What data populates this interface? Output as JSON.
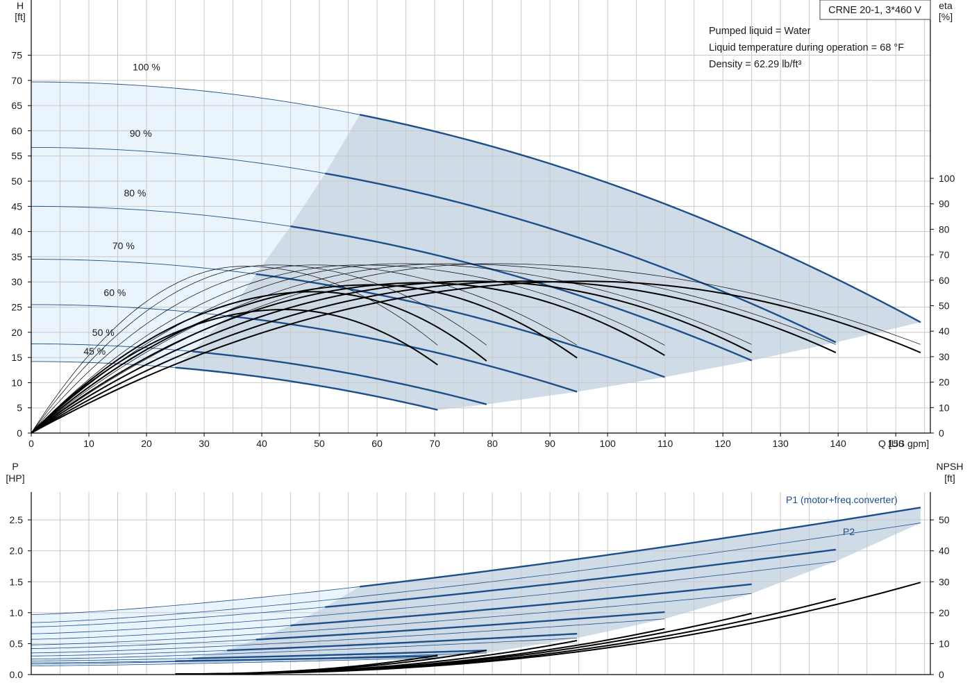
{
  "title": "CRNE 20-1, 3*460 V",
  "info_lines": [
    "Pumped liquid = Water",
    "Liquid temperature during operation = 68 °F",
    "Density = 62.29 lb/ft³"
  ],
  "colors": {
    "grid": "#c8c8c8",
    "blue_curve": "#1c4e8a",
    "black_curve": "#000000",
    "region_light": "#eaf4fd",
    "region_dark": "#cfdbe7"
  },
  "chart_data": [
    {
      "id": "head",
      "type": "line",
      "xlabel": "Q [US gpm]",
      "ylabel_left": [
        "H",
        "[ft]"
      ],
      "ylabel_right": [
        "eta",
        "[%]"
      ],
      "xlim": [
        0,
        156
      ],
      "ylim_left": [
        0,
        81
      ],
      "ylim_right": [
        0,
        100
      ],
      "x_ticks": [
        0,
        10,
        20,
        30,
        40,
        50,
        60,
        70,
        80,
        90,
        100,
        110,
        120,
        130,
        140,
        150
      ],
      "y_ticks_left": [
        0,
        5,
        10,
        15,
        20,
        25,
        30,
        35,
        40,
        45,
        50,
        55,
        60,
        65,
        70,
        75
      ],
      "y_ticks_right": [
        0,
        10,
        20,
        30,
        40,
        50,
        60,
        70,
        80,
        90,
        100
      ],
      "grid": true,
      "speed_labels": [
        {
          "text": "100 %",
          "x": 20,
          "y": 72
        },
        {
          "text": "90 %",
          "x": 19,
          "y": 58.8
        },
        {
          "text": "80 %",
          "x": 18,
          "y": 47
        },
        {
          "text": "70 %",
          "x": 16,
          "y": 36.5
        },
        {
          "text": "60 %",
          "x": 14.5,
          "y": 27.2
        },
        {
          "text": "50 %",
          "x": 12.5,
          "y": 19.3
        },
        {
          "text": "45 %",
          "x": 11,
          "y": 15.6
        }
      ],
      "head_curves": [
        {
          "speed": 100,
          "h0": 69.7,
          "qmax": 154.3,
          "hend": 22.0
        },
        {
          "speed": 90,
          "h0": 56.7,
          "qmax": 139.6,
          "hend": 18.0
        },
        {
          "speed": 80,
          "h0": 45.0,
          "qmax": 125.0,
          "hend": 14.4
        },
        {
          "speed": 70,
          "h0": 34.5,
          "qmax": 109.9,
          "hend": 11.1
        },
        {
          "speed": 60,
          "h0": 25.5,
          "qmax": 94.7,
          "hend": 8.2
        },
        {
          "speed": 50,
          "h0": 17.7,
          "qmax": 79.0,
          "hend": 5.7
        },
        {
          "speed": 45,
          "h0": 14.2,
          "qmax": 70.5,
          "hend": 4.6
        }
      ],
      "bold_from_q": {
        "100": 57,
        "90": 51,
        "80": 45,
        "70": 39,
        "60": 34,
        "50": 28,
        "45": 25
      },
      "efficiency_curves_bold": [
        {
          "qmax": 154.3,
          "peak_q": 96,
          "peak_eta": 59.6,
          "eta_end": 31.6
        },
        {
          "qmax": 139.6,
          "peak_q": 86,
          "peak_eta": 59.6,
          "eta_end": 31.6
        },
        {
          "qmax": 125.0,
          "peak_q": 77,
          "peak_eta": 59.6,
          "eta_end": 31.6
        },
        {
          "qmax": 109.9,
          "peak_q": 68,
          "peak_eta": 59.0,
          "eta_end": 30.5
        },
        {
          "qmax": 94.7,
          "peak_q": 59,
          "peak_eta": 58.2,
          "eta_end": 29.5
        },
        {
          "qmax": 79.0,
          "peak_q": 49,
          "peak_eta": 55.5,
          "eta_end": 28.3
        },
        {
          "qmax": 70.5,
          "peak_q": 44,
          "peak_eta": 48.5,
          "eta_end": 26.8
        }
      ],
      "efficiency_curves_thin": [
        {
          "qmax": 154.3,
          "peak_q": 80,
          "peak_eta": 66.5,
          "eta_end": 34.8
        },
        {
          "qmax": 139.6,
          "peak_q": 72,
          "peak_eta": 66.5,
          "eta_end": 34.8
        },
        {
          "qmax": 125.0,
          "peak_q": 64,
          "peak_eta": 66.5,
          "eta_end": 34.8
        },
        {
          "qmax": 109.9,
          "peak_q": 57,
          "peak_eta": 66.0,
          "eta_end": 34.5
        },
        {
          "qmax": 94.7,
          "peak_q": 49,
          "peak_eta": 66.0,
          "eta_end": 34.5
        },
        {
          "qmax": 79.0,
          "peak_q": 42,
          "peak_eta": 66.0,
          "eta_end": 34.5
        },
        {
          "qmax": 70.5,
          "peak_q": 37,
          "peak_eta": 65.5,
          "eta_end": 34.5
        }
      ]
    },
    {
      "id": "power",
      "type": "line",
      "xlabel": "",
      "ylabel_left": [
        "P",
        "[HP]"
      ],
      "ylabel_right": [
        "NPSH",
        "[ft]"
      ],
      "xlim": [
        0,
        156
      ],
      "ylim_left": [
        0,
        2.95
      ],
      "ylim_right": [
        0,
        59
      ],
      "y_ticks_left": [
        0.0,
        0.5,
        1.0,
        1.5,
        2.0,
        2.5
      ],
      "y_ticks_right": [
        0,
        10,
        20,
        30,
        40,
        50
      ],
      "grid": true,
      "legend": [
        {
          "text": "P1 (motor+freq.converter)",
          "series": "P1"
        },
        {
          "text": "P2",
          "series": "P2"
        }
      ],
      "p1_curves": [
        {
          "qmax": 154.3,
          "p0": 0.97,
          "pend": 2.7
        },
        {
          "qmax": 139.6,
          "p0": 0.77,
          "pend": 2.02
        },
        {
          "qmax": 125.0,
          "p0": 0.57,
          "pend": 1.46
        },
        {
          "qmax": 109.9,
          "p0": 0.42,
          "pend": 1.01
        },
        {
          "qmax": 94.7,
          "p0": 0.3,
          "pend": 0.66
        },
        {
          "qmax": 79.0,
          "p0": 0.22,
          "pend": 0.39
        },
        {
          "qmax": 70.5,
          "p0": 0.19,
          "pend": 0.3
        }
      ],
      "p2_curves": [
        {
          "qmax": 154.3,
          "p0": 0.84,
          "pend": 2.45
        },
        {
          "qmax": 139.6,
          "p0": 0.66,
          "pend": 1.83
        },
        {
          "qmax": 125.0,
          "p0": 0.48,
          "pend": 1.31
        },
        {
          "qmax": 109.9,
          "p0": 0.35,
          "pend": 0.9
        },
        {
          "qmax": 94.7,
          "p0": 0.25,
          "pend": 0.59
        },
        {
          "qmax": 79.0,
          "p0": 0.17,
          "pend": 0.35
        },
        {
          "qmax": 70.5,
          "p0": 0.14,
          "pend": 0.27
        }
      ],
      "bold_from_q": {
        "100": 57,
        "90": 51,
        "80": 45,
        "70": 39,
        "60": 34,
        "50": 28,
        "45": 25
      },
      "npsh_curves": [
        {
          "q_start": 25,
          "qmax": 154.3,
          "n_start": 0.2,
          "n_end": 29.8
        },
        {
          "q_start": 25,
          "qmax": 139.6,
          "n_start": 0.2,
          "n_end": 24.5
        },
        {
          "q_start": 25,
          "qmax": 125.0,
          "n_start": 0.2,
          "n_end": 19.8
        },
        {
          "q_start": 25,
          "qmax": 109.9,
          "n_start": 0.2,
          "n_end": 14.8
        },
        {
          "q_start": 25,
          "qmax": 94.7,
          "n_start": 0.2,
          "n_end": 11.0
        },
        {
          "q_start": 25,
          "qmax": 79.0,
          "n_start": 0.2,
          "n_end": 7.8
        },
        {
          "q_start": 25,
          "qmax": 70.5,
          "n_start": 0.2,
          "n_end": 6.2
        }
      ]
    }
  ]
}
